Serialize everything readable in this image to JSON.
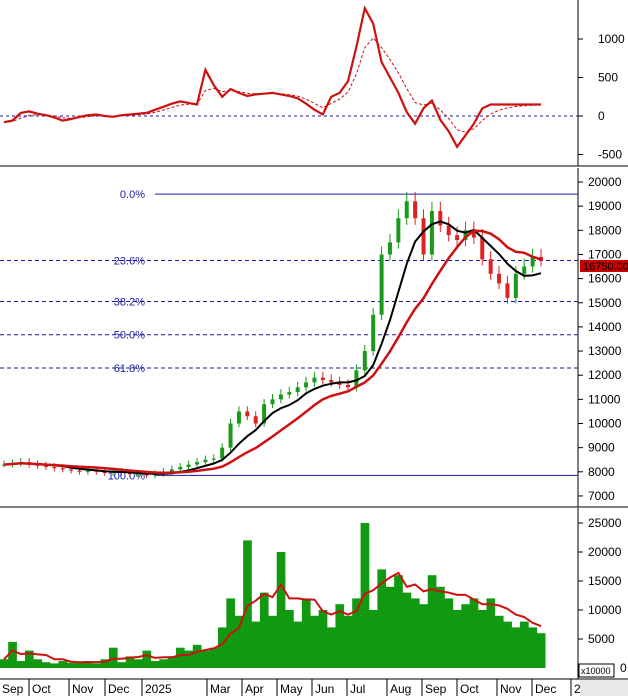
{
  "chart_data": [
    {
      "type": "line",
      "panel": "oscillator",
      "ylim": [
        -650,
        1500
      ],
      "y_ticks": [
        "1000",
        "500",
        "0",
        "-500"
      ],
      "colors": {
        "main": "#cc1111",
        "signal": "#cc1111"
      },
      "values": [
        -80,
        -60,
        40,
        60,
        30,
        10,
        -20,
        -60,
        -40,
        -10,
        10,
        20,
        0,
        -10,
        10,
        20,
        30,
        40,
        80,
        120,
        160,
        190,
        170,
        150,
        600,
        400,
        250,
        350,
        300,
        260,
        280,
        290,
        300,
        280,
        260,
        230,
        160,
        80,
        20,
        250,
        300,
        450,
        900,
        1400,
        1200,
        700,
        500,
        300,
        50,
        -100,
        100,
        200,
        -50,
        -200,
        -400,
        -250,
        -100,
        100,
        150,
        150,
        150,
        150,
        150,
        150,
        150
      ]
    },
    {
      "type": "candlestick",
      "panel": "price",
      "ylim": [
        6500,
        20500
      ],
      "y_ticks": [
        "20000",
        "19000",
        "18000",
        "17000",
        "16000",
        "15000",
        "14000",
        "13000",
        "12000",
        "11000",
        "10000",
        "9000",
        "8000",
        "7000"
      ],
      "last_price_label": "16750.00",
      "colors": {
        "up": "#1a9a1a",
        "down": "#dd2222",
        "ma_short": "#000000",
        "ma_long": "#cc1111",
        "fib": "#1a1aa0",
        "last_price_bg": "#cc0000"
      },
      "fibonacci": {
        "high": 19500,
        "low": 7850,
        "levels": [
          {
            "label": "0.0%",
            "ratio": 0
          },
          {
            "label": "23.6%",
            "ratio": 0.236
          },
          {
            "label": "38.2%",
            "ratio": 0.382
          },
          {
            "label": "50.0%",
            "ratio": 0.5
          },
          {
            "label": "61.8%",
            "ratio": 0.618
          },
          {
            "label": "100.0%",
            "ratio": 1
          }
        ]
      },
      "closes": [
        8300,
        8350,
        8400,
        8300,
        8250,
        8200,
        8150,
        8100,
        8050,
        8000,
        8050,
        8000,
        7950,
        8000,
        7950,
        7900,
        7900,
        7850,
        7900,
        8000,
        8100,
        8200,
        8300,
        8400,
        8500,
        8550,
        9000,
        10000,
        10500,
        10300,
        10000,
        10800,
        11000,
        11200,
        11300,
        11500,
        11700,
        11900,
        11800,
        11700,
        11600,
        11500,
        12200,
        13000,
        14500,
        17000,
        17500,
        18500,
        19200,
        18500,
        17000,
        18800,
        18200,
        17800,
        17600,
        18000,
        17700,
        16800,
        16200,
        15800,
        15200,
        16200,
        16500,
        16900,
        16750
      ]
    },
    {
      "type": "bar",
      "panel": "volume",
      "unit_label": "x10000",
      "ylim": [
        0,
        26000
      ],
      "y_ticks": [
        "25000",
        "20000",
        "15000",
        "10000",
        "5000",
        "0"
      ],
      "colors": {
        "bars": "#119911",
        "ma": "#cc1111"
      },
      "values": [
        1500,
        4500,
        1200,
        3000,
        1500,
        1000,
        800,
        1200,
        900,
        1000,
        1200,
        800,
        1500,
        3500,
        1000,
        2000,
        1500,
        3000,
        1200,
        1500,
        2000,
        3500,
        3000,
        4000,
        3000,
        3500,
        7000,
        12000,
        9000,
        22000,
        8000,
        13000,
        9000,
        20000,
        10000,
        8000,
        12000,
        9000,
        10000,
        7000,
        11000,
        9000,
        12000,
        25000,
        10000,
        17000,
        14000,
        16000,
        13000,
        12000,
        11000,
        16000,
        14000,
        12000,
        10000,
        11000,
        12000,
        10000,
        12000,
        9000,
        8000,
        7000,
        8000,
        7000,
        6000
      ]
    }
  ],
  "x_axis": {
    "months": [
      "Sep",
      "Oct",
      "Nov",
      "Dec",
      "2025",
      "Mar",
      "Apr",
      "May",
      "Jun",
      "Jul",
      "Aug",
      "Sep",
      "Oct",
      "Nov",
      "Dec",
      "2"
    ]
  }
}
